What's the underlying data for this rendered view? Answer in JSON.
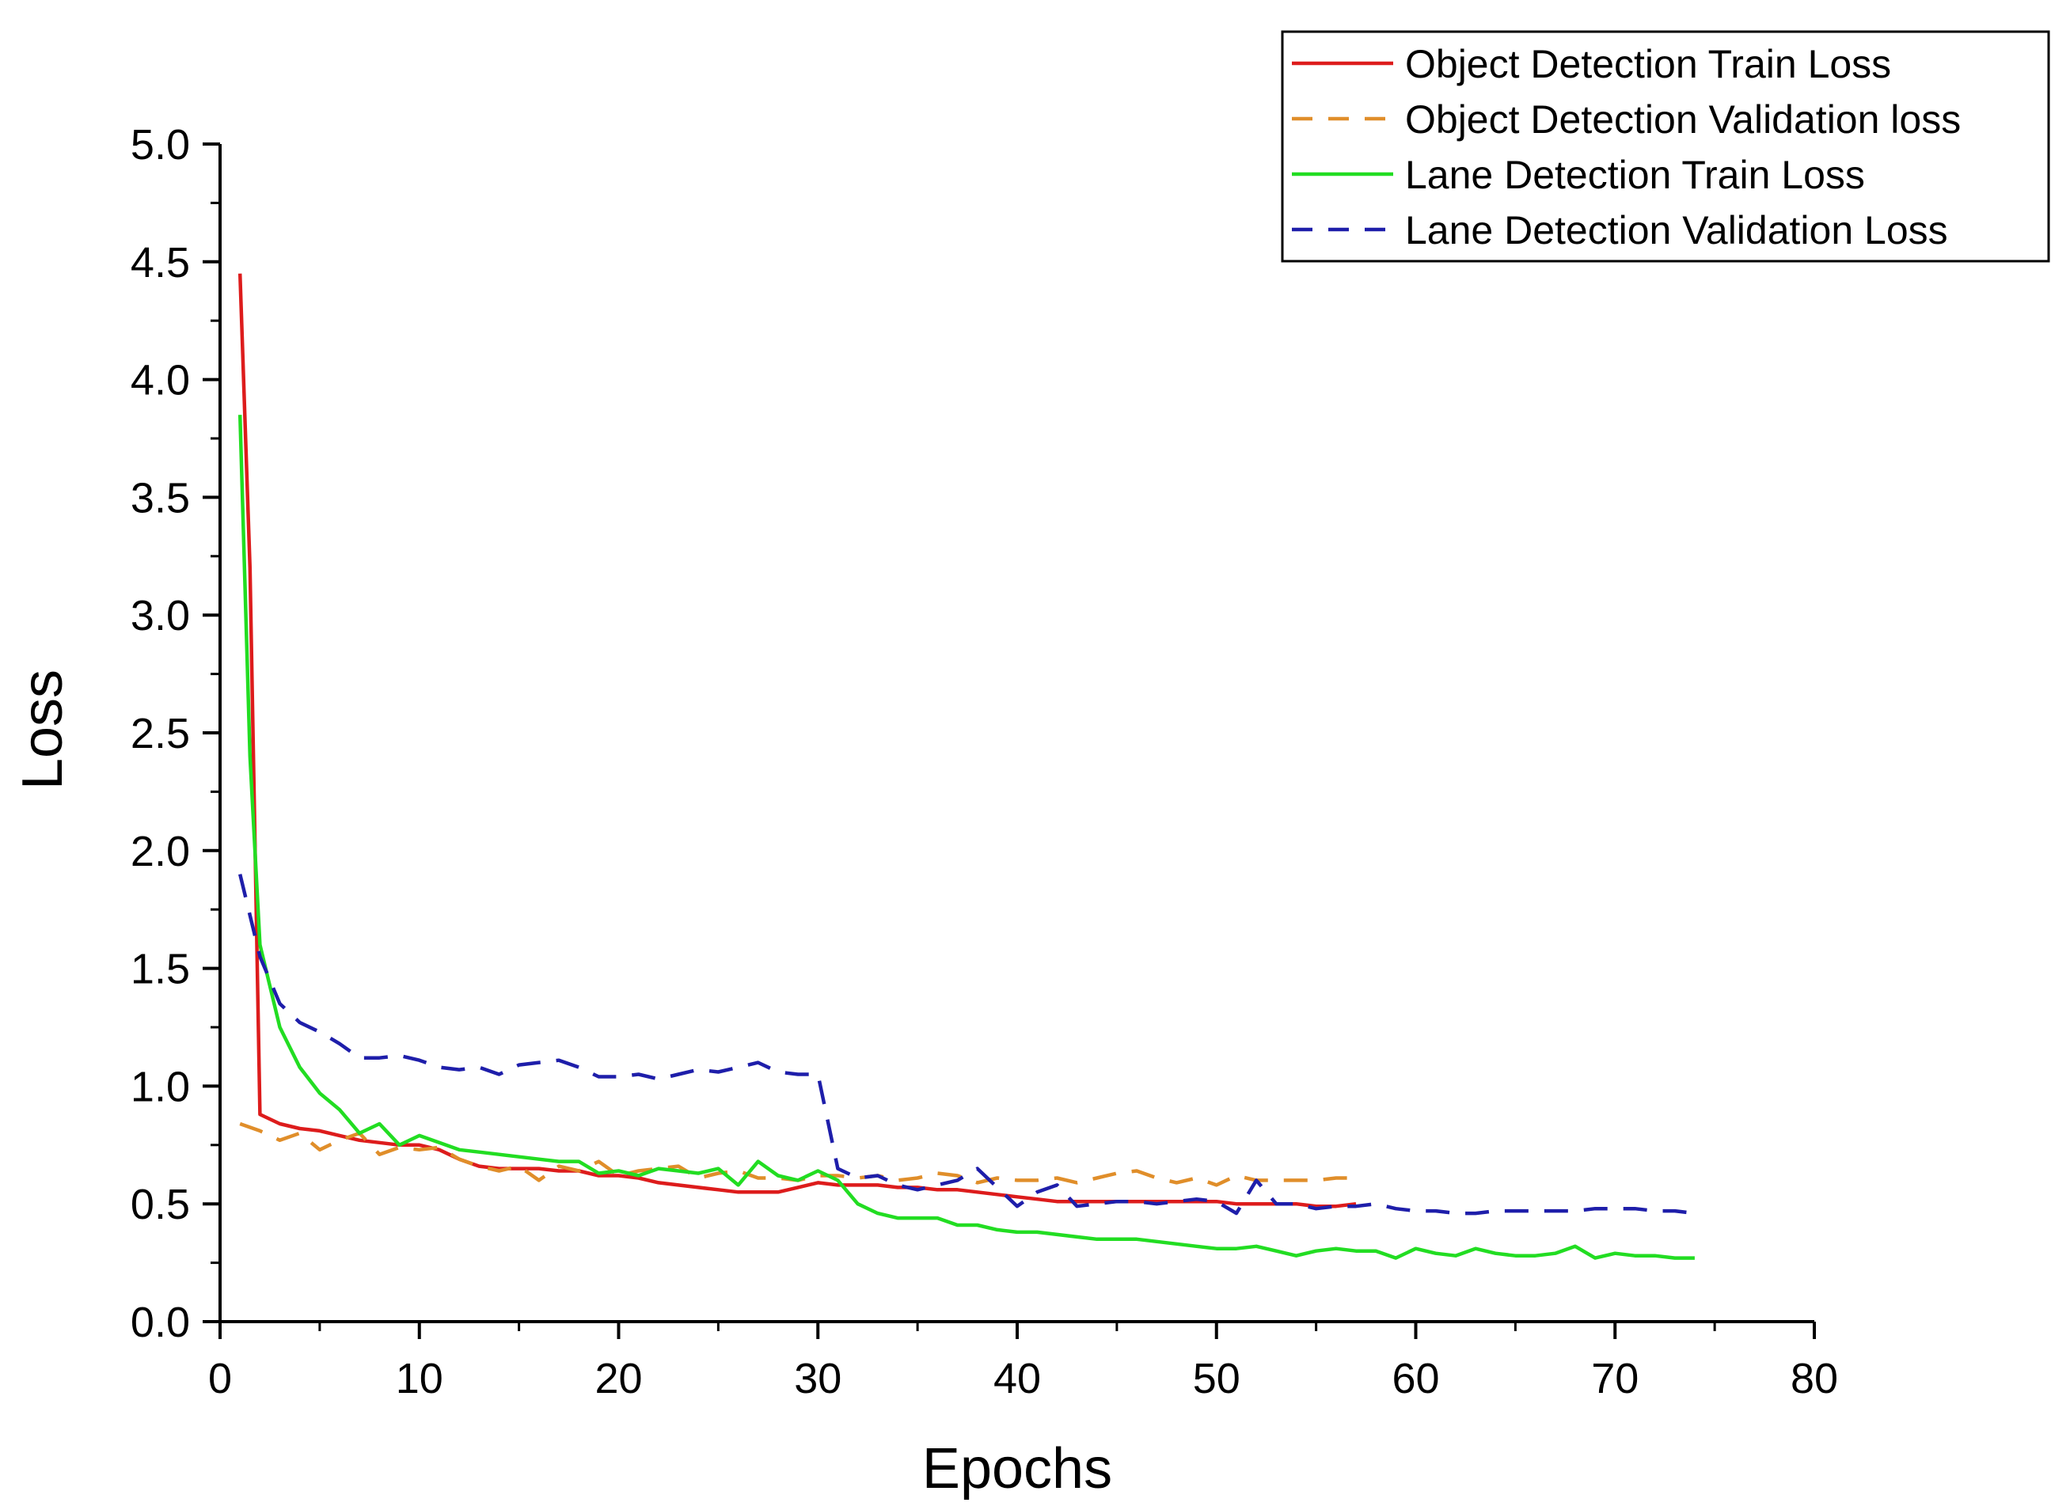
{
  "chart_data": {
    "type": "line",
    "title": "",
    "xlabel": "Epochs",
    "ylabel": "Loss",
    "xlim": [
      0,
      80
    ],
    "ylim": [
      0,
      5
    ],
    "xticks": [
      0,
      10,
      20,
      30,
      40,
      50,
      60,
      70,
      80
    ],
    "yticks": [
      0.0,
      0.5,
      1.0,
      1.5,
      2.0,
      2.5,
      3.0,
      3.5,
      4.0,
      4.5,
      5.0
    ],
    "ytick_labels": [
      "0.0",
      "0.5",
      "1.0",
      "1.5",
      "2.0",
      "2.5",
      "3.0",
      "3.5",
      "4.0",
      "4.5",
      "5.0"
    ],
    "grid": false,
    "legend_position": "top-right",
    "series": [
      {
        "name": "Object Detection Train Loss",
        "color": "#dd1c1c",
        "dash": "solid",
        "x": [
          1,
          1.5,
          2,
          3,
          4,
          5,
          6,
          7,
          8,
          9,
          10,
          11,
          12,
          13,
          14,
          15,
          16,
          17,
          18,
          19,
          20,
          21,
          22,
          23,
          24,
          25,
          26,
          27,
          28,
          29,
          30,
          31,
          32,
          33,
          34,
          35,
          36,
          37,
          38,
          39,
          40,
          41,
          42,
          43,
          44,
          45,
          46,
          47,
          48,
          49,
          50,
          51,
          52,
          53,
          54,
          55,
          56,
          57
        ],
        "y": [
          4.45,
          3.2,
          0.88,
          0.84,
          0.82,
          0.81,
          0.79,
          0.77,
          0.76,
          0.75,
          0.75,
          0.73,
          0.69,
          0.66,
          0.65,
          0.65,
          0.65,
          0.64,
          0.64,
          0.62,
          0.62,
          0.61,
          0.59,
          0.58,
          0.57,
          0.56,
          0.55,
          0.55,
          0.55,
          0.57,
          0.59,
          0.58,
          0.58,
          0.58,
          0.57,
          0.57,
          0.56,
          0.56,
          0.55,
          0.54,
          0.53,
          0.52,
          0.51,
          0.51,
          0.51,
          0.51,
          0.51,
          0.51,
          0.51,
          0.51,
          0.51,
          0.5,
          0.5,
          0.5,
          0.5,
          0.49,
          0.49,
          0.5
        ]
      },
      {
        "name": "Object Detection Validation loss",
        "color": "#e08e2a",
        "dash": "dashed",
        "x": [
          1,
          2,
          3,
          4,
          5,
          6,
          7,
          8,
          9,
          10,
          11,
          12,
          13,
          14,
          15,
          16,
          17,
          18,
          19,
          20,
          21,
          22,
          23,
          24,
          25,
          26,
          27,
          28,
          29,
          30,
          31,
          32,
          33,
          34,
          35,
          36,
          37,
          38,
          39,
          40,
          41,
          42,
          43,
          44,
          45,
          46,
          47,
          48,
          49,
          50,
          51,
          52,
          53,
          54,
          55,
          56,
          57
        ],
        "y": [
          0.84,
          0.81,
          0.77,
          0.8,
          0.73,
          0.77,
          0.8,
          0.71,
          0.74,
          0.73,
          0.74,
          0.69,
          0.66,
          0.64,
          0.66,
          0.6,
          0.66,
          0.64,
          0.68,
          0.62,
          0.64,
          0.65,
          0.66,
          0.61,
          0.63,
          0.64,
          0.61,
          0.61,
          0.6,
          0.62,
          0.62,
          0.61,
          0.62,
          0.6,
          0.61,
          0.63,
          0.62,
          0.59,
          0.61,
          0.6,
          0.6,
          0.61,
          0.59,
          0.61,
          0.63,
          0.64,
          0.61,
          0.59,
          0.61,
          0.58,
          0.62,
          0.6,
          0.6,
          0.6,
          0.6,
          0.61,
          0.61
        ]
      },
      {
        "name": "Lane Detection Train Loss",
        "color": "#22dd22",
        "dash": "solid",
        "x": [
          1,
          1.5,
          2,
          3,
          4,
          5,
          6,
          7,
          8,
          9,
          10,
          11,
          12,
          13,
          14,
          15,
          16,
          17,
          18,
          19,
          20,
          21,
          22,
          23,
          24,
          25,
          26,
          27,
          28,
          29,
          30,
          31,
          32,
          33,
          34,
          35,
          36,
          37,
          38,
          39,
          40,
          41,
          42,
          43,
          44,
          45,
          46,
          47,
          48,
          49,
          50,
          51,
          52,
          53,
          54,
          55,
          56,
          57,
          58,
          59,
          60,
          61,
          62,
          63,
          64,
          65,
          66,
          67,
          68,
          69,
          70,
          71,
          72,
          73,
          74
        ],
        "y": [
          3.85,
          2.4,
          1.6,
          1.25,
          1.08,
          0.97,
          0.9,
          0.8,
          0.84,
          0.75,
          0.79,
          0.76,
          0.73,
          0.72,
          0.71,
          0.7,
          0.69,
          0.68,
          0.68,
          0.63,
          0.64,
          0.62,
          0.65,
          0.64,
          0.63,
          0.65,
          0.58,
          0.68,
          0.62,
          0.6,
          0.64,
          0.6,
          0.5,
          0.46,
          0.44,
          0.44,
          0.44,
          0.41,
          0.41,
          0.39,
          0.38,
          0.38,
          0.37,
          0.36,
          0.35,
          0.35,
          0.35,
          0.34,
          0.33,
          0.32,
          0.31,
          0.31,
          0.32,
          0.3,
          0.28,
          0.3,
          0.31,
          0.3,
          0.3,
          0.27,
          0.31,
          0.29,
          0.28,
          0.31,
          0.29,
          0.28,
          0.28,
          0.29,
          0.32,
          0.27,
          0.29,
          0.28,
          0.28,
          0.27,
          0.27
        ]
      },
      {
        "name": "Lane Detection Validation Loss",
        "color": "#1e1eaa",
        "dash": "dashed",
        "x": [
          1,
          2,
          3,
          4,
          5,
          6,
          7,
          8,
          9,
          10,
          11,
          12,
          13,
          14,
          15,
          16,
          17,
          18,
          19,
          20,
          21,
          22,
          23,
          24,
          25,
          26,
          27,
          28,
          29,
          30,
          31,
          32,
          33,
          34,
          35,
          36,
          37,
          38,
          39,
          40,
          41,
          42,
          43,
          44,
          45,
          46,
          47,
          48,
          49,
          50,
          51,
          52,
          53,
          54,
          55,
          56,
          57,
          58,
          59,
          60,
          61,
          62,
          63,
          64,
          65,
          66,
          67,
          68,
          69,
          70,
          71,
          72,
          73,
          74
        ],
        "y": [
          1.9,
          1.55,
          1.35,
          1.27,
          1.23,
          1.18,
          1.12,
          1.12,
          1.13,
          1.11,
          1.08,
          1.07,
          1.08,
          1.05,
          1.09,
          1.1,
          1.11,
          1.08,
          1.04,
          1.04,
          1.05,
          1.03,
          1.05,
          1.07,
          1.06,
          1.08,
          1.1,
          1.06,
          1.05,
          1.05,
          0.65,
          0.61,
          0.62,
          0.58,
          0.56,
          0.58,
          0.6,
          0.65,
          0.57,
          0.49,
          0.55,
          0.58,
          0.49,
          0.5,
          0.51,
          0.51,
          0.5,
          0.51,
          0.52,
          0.51,
          0.46,
          0.6,
          0.5,
          0.5,
          0.48,
          0.49,
          0.49,
          0.5,
          0.48,
          0.47,
          0.47,
          0.46,
          0.46,
          0.47,
          0.47,
          0.47,
          0.47,
          0.47,
          0.48,
          0.48,
          0.48,
          0.47,
          0.47,
          0.46
        ]
      }
    ]
  }
}
